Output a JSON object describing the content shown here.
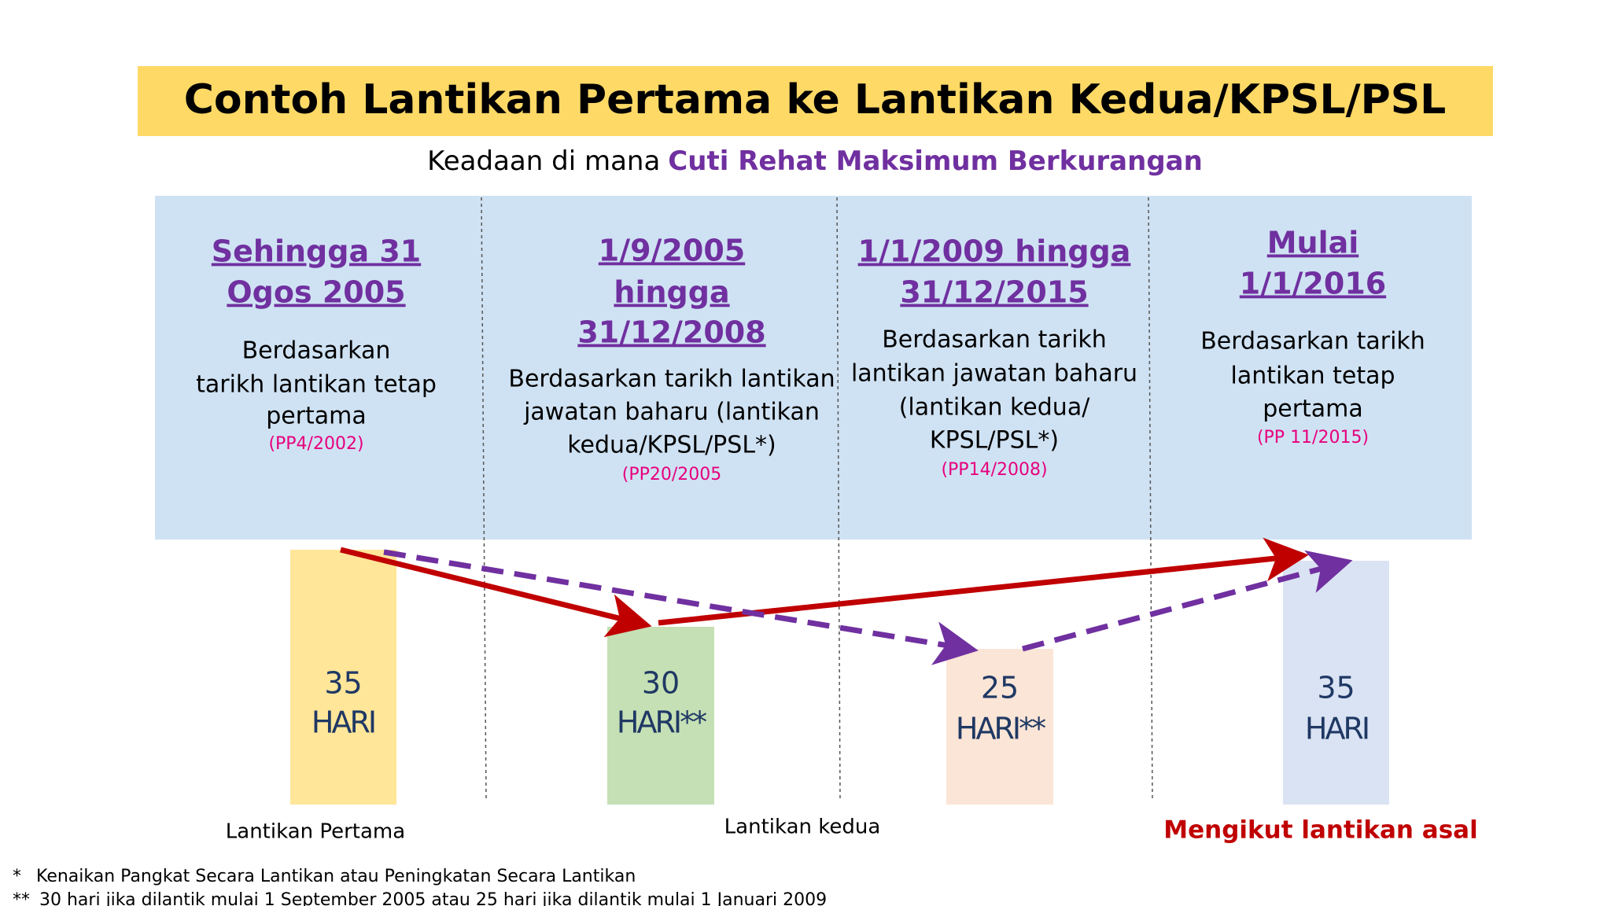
{
  "header": {
    "title": "Contoh Lantikan Pertama ke Lantikan Kedua/KPSL/PSL",
    "subtitle_lead": "Keadaan di mana",
    "subtitle_highlight": "Cuti Rehat Maksimum Berkurangan"
  },
  "columns": [
    {
      "heading": [
        "Sehingga  31",
        "Ogos 2005"
      ],
      "body": [
        "Berdasarkan",
        "tarikh lantikan tetap",
        "pertama"
      ],
      "ref": "(PP4/2002)",
      "days": "35",
      "unit": "HARI"
    },
    {
      "heading": [
        "1/9/2005",
        "hingga",
        "31/12/2008"
      ],
      "body": [
        "Berdasarkan tarikh lantikan",
        "jawatan baharu (lantikan",
        "kedua/KPSL/PSL*)"
      ],
      "ref": "(PP20/2005",
      "days": "30",
      "unit": "HARI**"
    },
    {
      "heading": [
        "1/1/2009 hingga",
        "31/12/2015"
      ],
      "body": [
        "Berdasarkan tarikh",
        "lantikan jawatan baharu",
        "(lantikan kedua/",
        "KPSL/PSL*)"
      ],
      "ref": "(PP14/2008)",
      "days": "25",
      "unit": "HARI**"
    },
    {
      "heading": [
        "Mulai",
        "1/1/2016"
      ],
      "body": [
        "Berdasarkan tarikh",
        "lantikan tetap",
        "pertama"
      ],
      "ref": "(PP 11/2015)",
      "days": "35",
      "unit": "HARI"
    }
  ],
  "bottom_labels": [
    "Lantikan Pertama",
    "Lantikan kedua",
    "Mengikut lantikan asal"
  ],
  "footnotes": [
    {
      "marker": "*",
      "text": "Kenaikan Pangkat Secara Lantikan atau Peningkatan Secara Lantikan"
    },
    {
      "marker": "**",
      "text": "30 hari jika dilantik mulai 1 September 2005 atau 25 hari jika dilantik mulai 1 Januari 2009"
    }
  ]
}
